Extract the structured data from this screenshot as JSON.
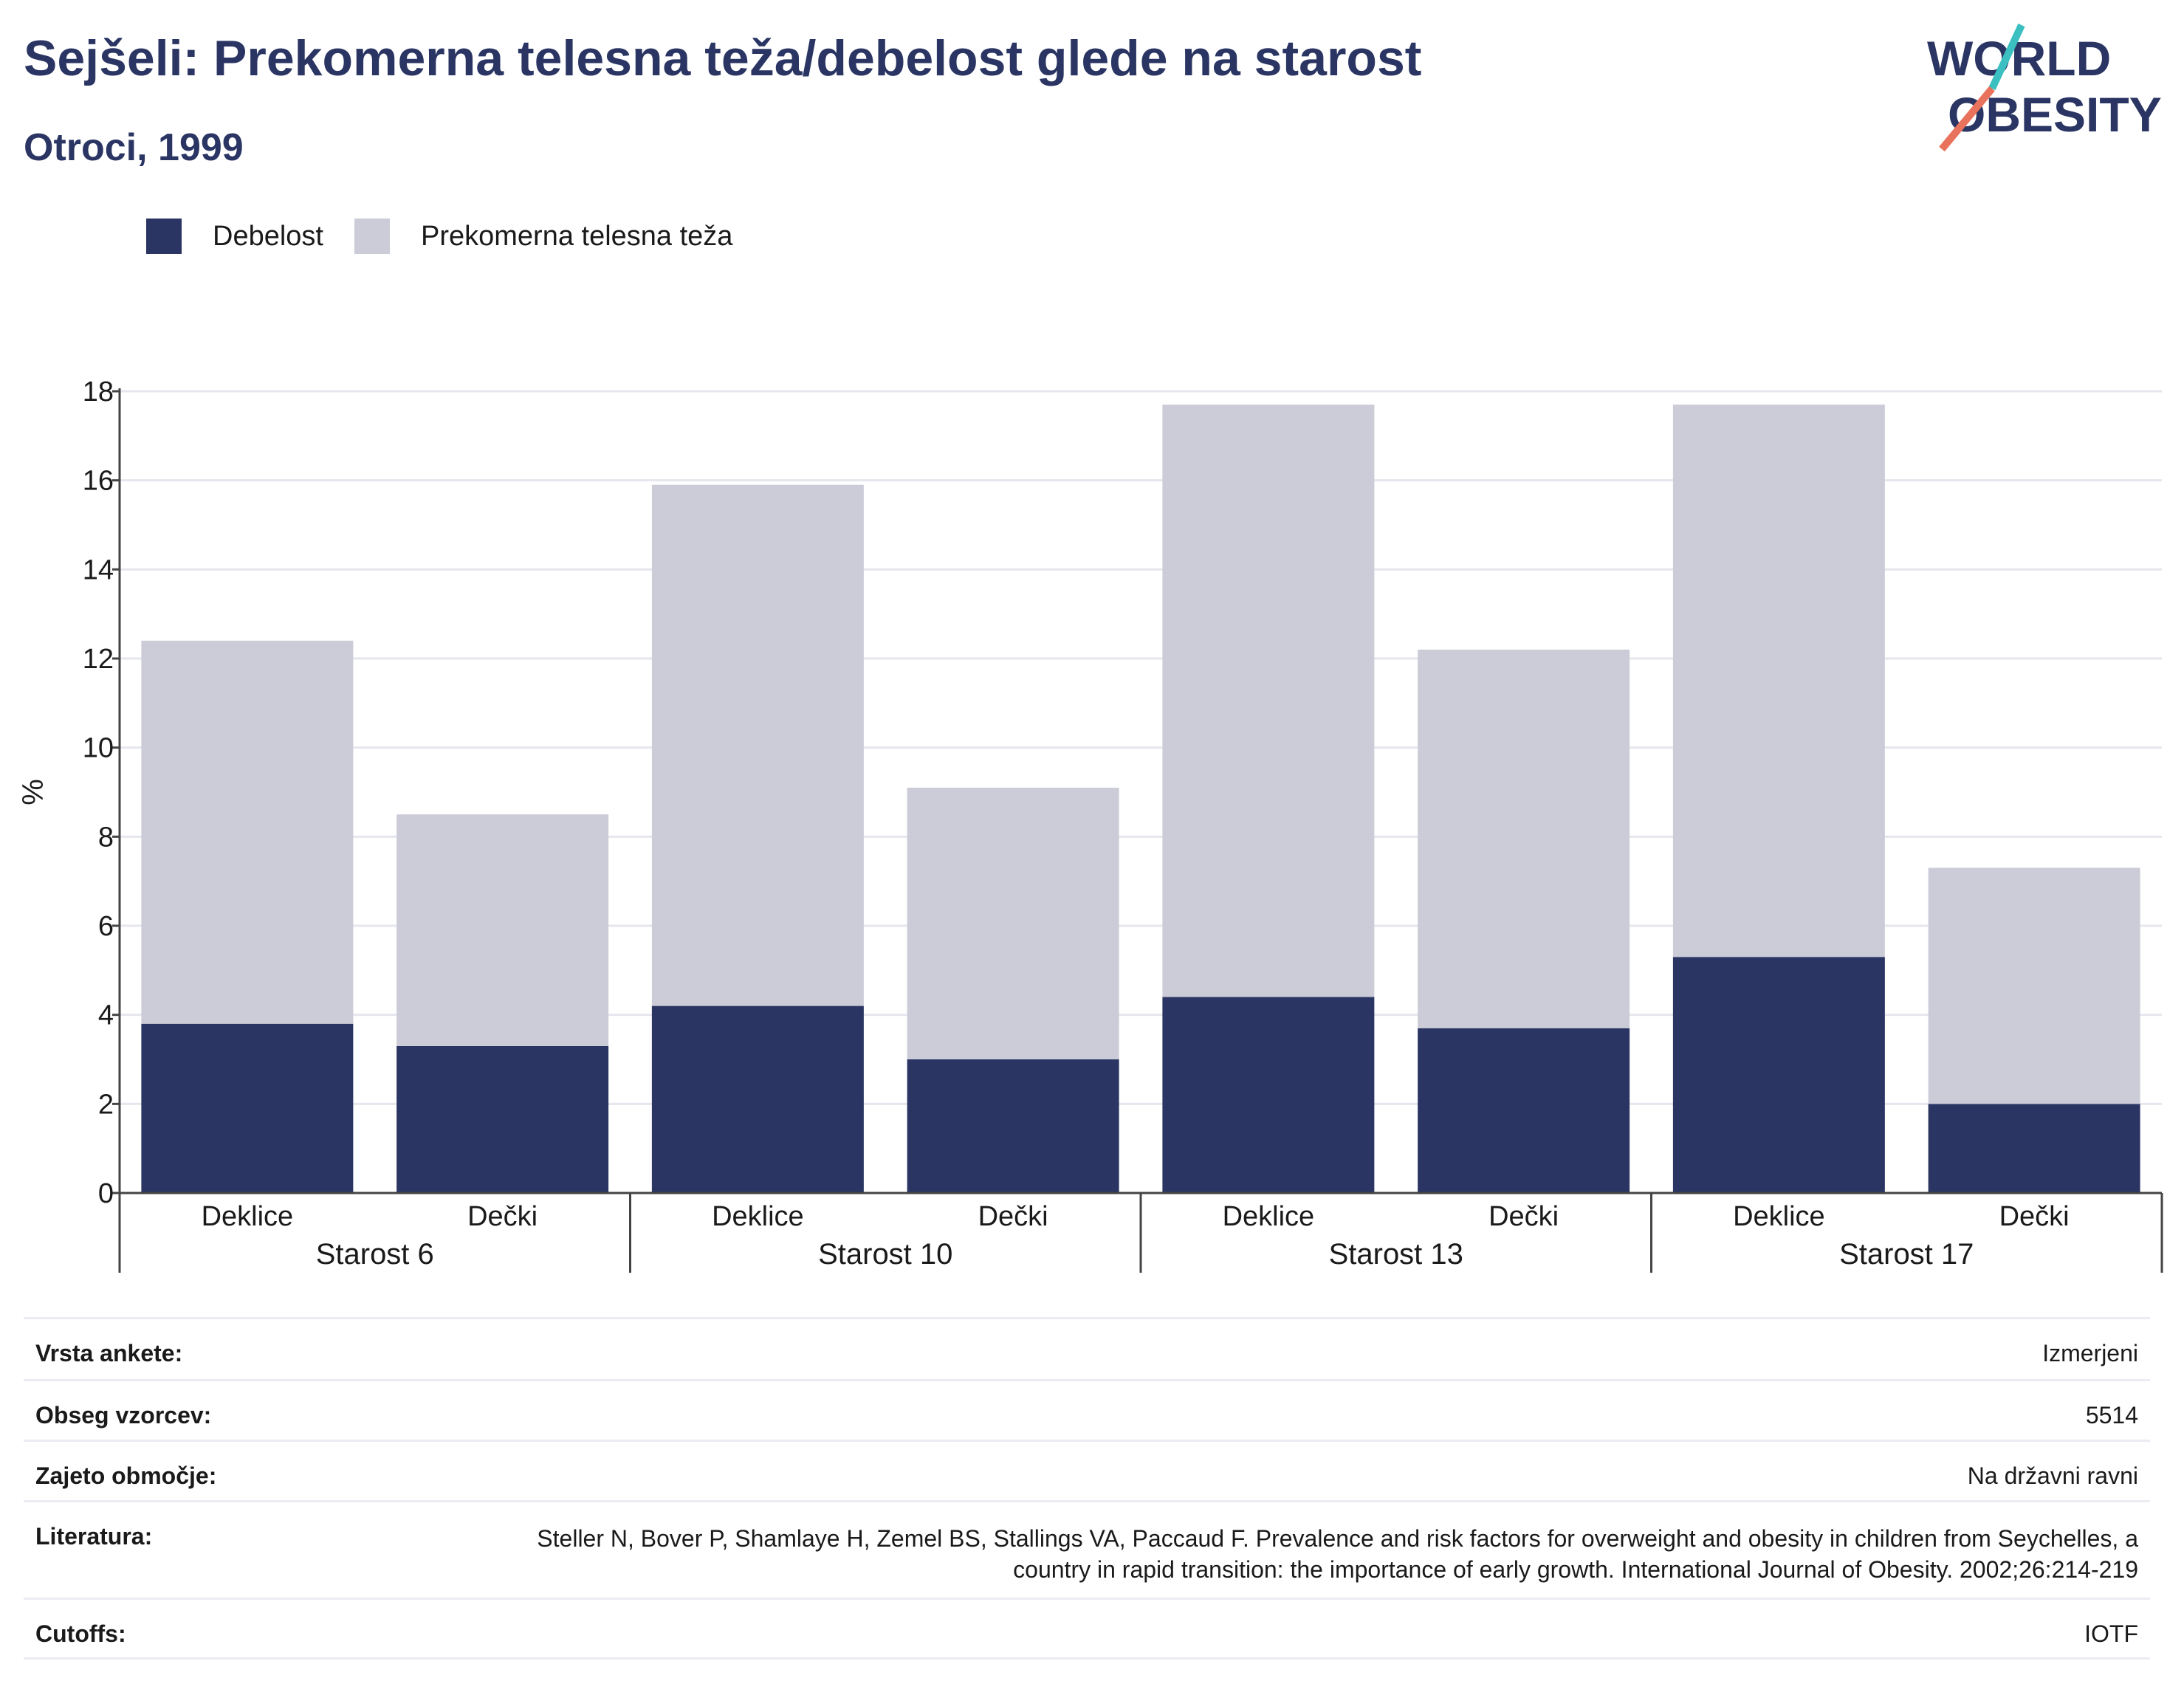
{
  "header": {
    "title": "Sejšeli: Prekomerna telesna teža/debelost glede na starost",
    "subtitle": "Otroci, 1999",
    "logo_line1": "WORLD",
    "logo_line2": "OBESITY"
  },
  "colors": {
    "obesity": "#2a3563",
    "overweight": "#cbccd8",
    "title": "#2a3563",
    "logo_teal": "#3bbfc0",
    "logo_coral": "#e8725c"
  },
  "legend": [
    {
      "label": "Debelost",
      "color": "#2a3563"
    },
    {
      "label": "Prekomerna telesna teža",
      "color": "#cbccd8"
    }
  ],
  "chart_data": {
    "type": "bar",
    "stacked": true,
    "ylabel": "%",
    "ylim": [
      0,
      18
    ],
    "yticks": [
      0,
      2,
      4,
      6,
      8,
      10,
      12,
      14,
      16,
      18
    ],
    "grid": true,
    "legend_position": "top-left",
    "groups": [
      "Starost 6",
      "Starost 10",
      "Starost 13",
      "Starost 17"
    ],
    "categories": [
      "Deklice",
      "Dečki",
      "Deklice",
      "Dečki",
      "Deklice",
      "Dečki",
      "Deklice",
      "Dečki"
    ],
    "series": [
      {
        "name": "Debelost",
        "values": [
          3.8,
          3.3,
          4.2,
          3.0,
          4.4,
          3.7,
          5.3,
          2.0
        ]
      },
      {
        "name": "Prekomerna telesna teža",
        "values": [
          8.6,
          5.2,
          11.7,
          6.1,
          13.3,
          8.5,
          12.4,
          5.3
        ]
      }
    ]
  },
  "info": [
    {
      "label": "Vrsta ankete:",
      "value": "Izmerjeni"
    },
    {
      "label": "Obseg vzorcev:",
      "value": "5514"
    },
    {
      "label": "Zajeto območje:",
      "value": "Na državni ravni"
    },
    {
      "label": "Literatura:",
      "value": "Steller N, Bover P, Shamlaye H, Zemel BS, Stallings VA, Paccaud F. Prevalence and risk factors for overweight and obesity in children from Seychelles, a country in rapid transition: the importance of early growth. International Journal of Obesity. 2002;26:214-219"
    },
    {
      "label": "Cutoffs:",
      "value": "IOTF"
    }
  ]
}
